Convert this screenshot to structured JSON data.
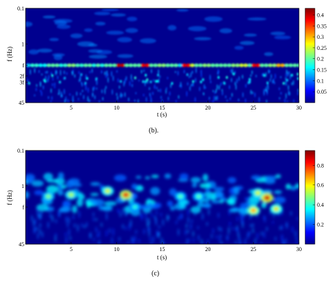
{
  "chart_data": [
    {
      "type": "heatmap",
      "caption": "(b).",
      "xlabel": "t (s)",
      "ylabel": "f (Hz)",
      "xlim": [
        0,
        30
      ],
      "x_ticks": [
        "5",
        "10",
        "15",
        "20",
        "25",
        "30"
      ],
      "y_scale": "log",
      "y_direction": "top-to-bottom",
      "y_ticks": [
        "0.1",
        "1",
        "f",
        "2f",
        "3f",
        "45"
      ],
      "y_tick_values": [
        0.1,
        1,
        4,
        8,
        12,
        45
      ],
      "colorbar": {
        "colormap": "jet",
        "range": [
          0,
          0.43
        ],
        "ticks": [
          "0.4",
          "0.35",
          "0.3",
          "0.25",
          "0.2",
          "0.15",
          "0.1",
          "0.05"
        ],
        "tick_values": [
          0.4,
          0.35,
          0.3,
          0.25,
          0.2,
          0.15,
          0.1,
          0.05
        ]
      },
      "band_energy": [
        {
          "band": "f",
          "t": [
            1,
            2,
            3,
            4,
            5,
            6,
            7,
            8,
            9,
            10.5,
            11,
            12,
            13,
            14,
            15,
            16,
            17.5,
            18,
            19,
            20,
            21,
            22,
            23,
            24,
            25.3,
            26,
            27,
            28,
            29,
            30
          ],
          "values": [
            0.18,
            0.16,
            0.2,
            0.17,
            0.22,
            0.18,
            0.2,
            0.17,
            0.2,
            0.4,
            0.2,
            0.2,
            0.38,
            0.2,
            0.22,
            0.2,
            0.38,
            0.25,
            0.2,
            0.22,
            0.2,
            0.2,
            0.22,
            0.25,
            0.38,
            0.2,
            0.22,
            0.3,
            0.2,
            0.2
          ]
        },
        {
          "band": "2f-3f",
          "t": [
            2,
            6,
            10,
            14,
            18,
            22,
            26,
            29
          ],
          "values": [
            0.08,
            0.08,
            0.08,
            0.07,
            0.08,
            0.08,
            0.08,
            0.07
          ]
        }
      ]
    },
    {
      "type": "heatmap",
      "caption": "(c)",
      "xlabel": "t (s)",
      "ylabel": "f (Hz)",
      "xlim": [
        0,
        30
      ],
      "x_ticks": [
        "5",
        "10",
        "15",
        "20",
        "25",
        "30"
      ],
      "y_scale": "log",
      "y_direction": "top-to-bottom",
      "y_ticks": [
        "0.1",
        "1",
        "f",
        "45"
      ],
      "y_tick_values": [
        0.1,
        1,
        4,
        45
      ],
      "colorbar": {
        "colormap": "jet",
        "range": [
          0,
          0.95
        ],
        "ticks": [
          "0.8",
          "0.6",
          "0.4",
          "0.2"
        ],
        "tick_values": [
          0.8,
          0.6,
          0.4,
          0.2
        ]
      },
      "hotspots": [
        {
          "t": 2.5,
          "f": 2.0,
          "value": 0.5
        },
        {
          "t": 5,
          "f": 1.8,
          "value": 0.55
        },
        {
          "t": 9,
          "f": 1.4,
          "value": 0.6
        },
        {
          "t": 11,
          "f": 1.8,
          "value": 0.9
        },
        {
          "t": 12,
          "f": 4.0,
          "value": 0.4
        },
        {
          "t": 17,
          "f": 2.0,
          "value": 0.45
        },
        {
          "t": 19,
          "f": 2.0,
          "value": 0.45
        },
        {
          "t": 25.5,
          "f": 1.6,
          "value": 0.6
        },
        {
          "t": 25,
          "f": 5.0,
          "value": 0.75
        },
        {
          "t": 26.5,
          "f": 2.2,
          "value": 0.95
        },
        {
          "t": 27.5,
          "f": 4.5,
          "value": 0.65
        }
      ]
    }
  ]
}
